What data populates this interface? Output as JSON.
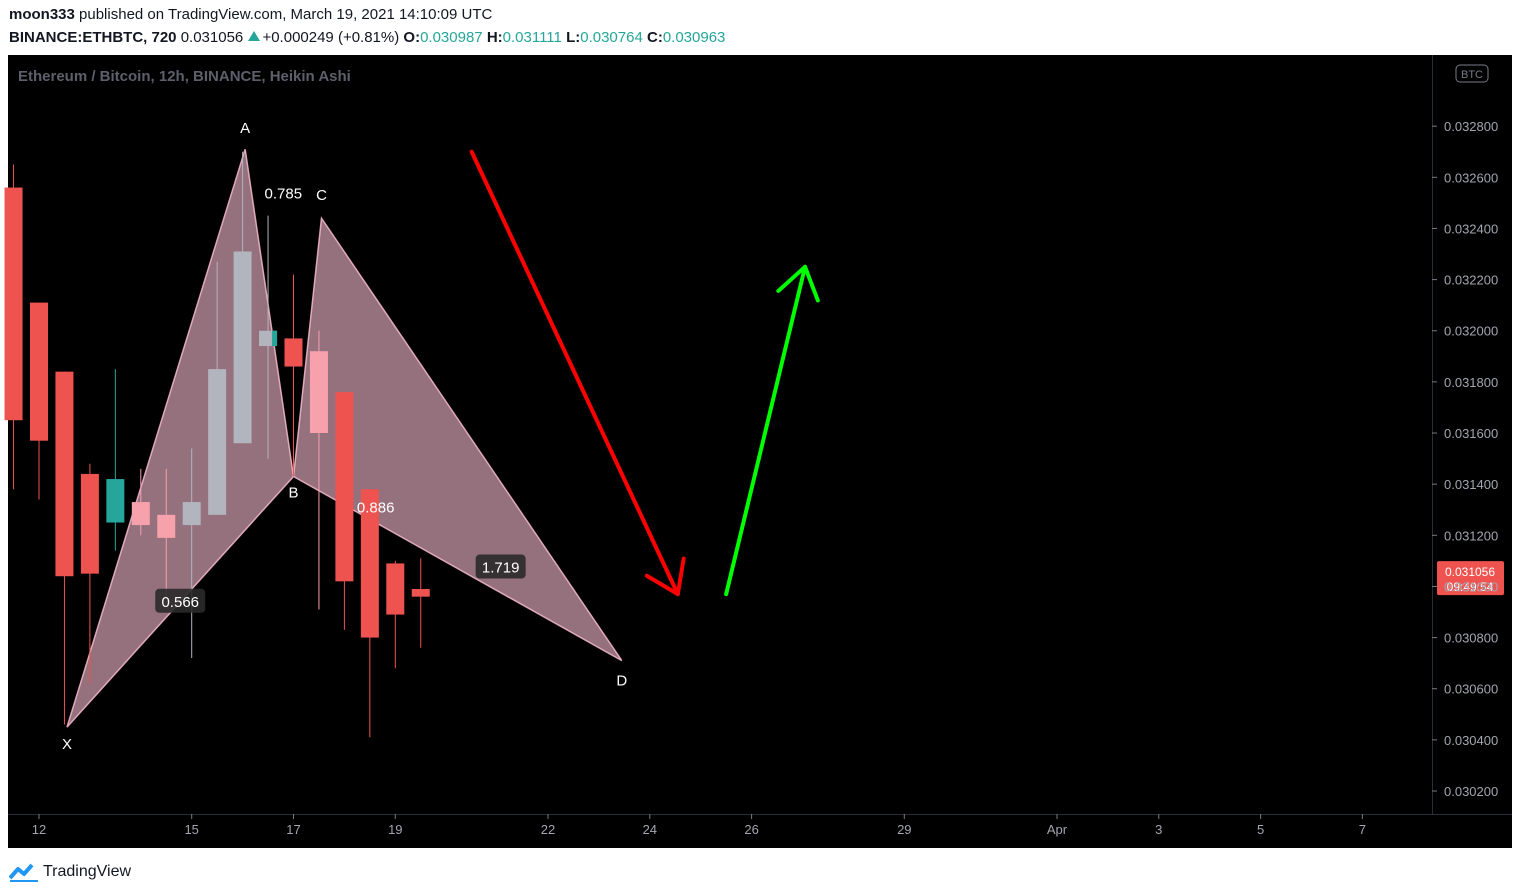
{
  "header": {
    "author": "moon333",
    "published_text": "published on TradingView.com, March 19, 2021 14:10:09 UTC",
    "symbol": "BINANCE:ETHBTC, 720",
    "last": "0.031056",
    "change": "+0.000249 (+0.81%)",
    "o_label": "O:",
    "o": "0.030987",
    "h_label": "H:",
    "h": "0.031111",
    "l_label": "L:",
    "l": "0.030764",
    "c_label": "C:",
    "c": "0.030963"
  },
  "footer": {
    "brand": "TradingView"
  },
  "chart_data": {
    "type": "candlestick",
    "title": "Ethereum / Bitcoin, 12h, BINANCE, Heikin Ashi",
    "currency_badge": "BTC",
    "style": "Heikin Ashi",
    "grid": false,
    "background": "#000000",
    "colors": {
      "up": "#b2b5be",
      "down": "#ef5350",
      "teal": "#26a69a",
      "pattern_fill": "#f8bbd0",
      "red_arrow": "#ff0000",
      "green_arrow": "#00ff00",
      "price_tag": "#ef5350"
    },
    "y_axis": {
      "range": [
        0.0301,
        0.033
      ],
      "ticks": [
        "0.032800",
        "0.032600",
        "0.032400",
        "0.032200",
        "0.032000",
        "0.031800",
        "0.031600",
        "0.031400",
        "0.031200",
        "0.031000",
        "0.030800",
        "0.030600",
        "0.030400",
        "0.030200"
      ]
    },
    "x_axis": {
      "ticks": [
        {
          "label": "12",
          "t": 12
        },
        {
          "label": "15",
          "t": 15
        },
        {
          "label": "17",
          "t": 17
        },
        {
          "label": "19",
          "t": 19
        },
        {
          "label": "22",
          "t": 22
        },
        {
          "label": "24",
          "t": 24
        },
        {
          "label": "26",
          "t": 26
        },
        {
          "label": "29",
          "t": 29
        },
        {
          "label": "Apr",
          "t": 32
        },
        {
          "label": "3",
          "t": 34
        },
        {
          "label": "5",
          "t": 36
        },
        {
          "label": "7",
          "t": 38
        }
      ],
      "range": [
        11.4,
        39.4
      ]
    },
    "last_price_tag": {
      "price": 0.031056,
      "label": "0.031056",
      "countdown": "09:49:54"
    },
    "candles": [
      {
        "t": 11.5,
        "o": 0.03256,
        "h": 0.03265,
        "l": 0.03138,
        "c": 0.03165,
        "color": "down"
      },
      {
        "t": 12.0,
        "o": 0.03211,
        "h": 0.03211,
        "l": 0.03134,
        "c": 0.03157,
        "color": "down"
      },
      {
        "t": 12.5,
        "o": 0.03184,
        "h": 0.03184,
        "l": 0.03046,
        "c": 0.03104,
        "color": "down"
      },
      {
        "t": 13.0,
        "o": 0.03144,
        "h": 0.03148,
        "l": 0.03062,
        "c": 0.03105,
        "color": "down"
      },
      {
        "t": 13.5,
        "o": 0.03125,
        "h": 0.03185,
        "l": 0.03114,
        "c": 0.03142,
        "color": "teal"
      },
      {
        "t": 14.0,
        "o": 0.03133,
        "h": 0.03146,
        "l": 0.0312,
        "c": 0.03124,
        "color": "pink"
      },
      {
        "t": 14.5,
        "o": 0.03128,
        "h": 0.03146,
        "l": 0.03092,
        "c": 0.03119,
        "color": "pink"
      },
      {
        "t": 15.0,
        "o": 0.03124,
        "h": 0.03154,
        "l": 0.03072,
        "c": 0.03133,
        "color": "up"
      },
      {
        "t": 15.5,
        "o": 0.03128,
        "h": 0.03227,
        "l": 0.03128,
        "c": 0.03185,
        "color": "up"
      },
      {
        "t": 16.0,
        "o": 0.03156,
        "h": 0.0327,
        "l": 0.03156,
        "c": 0.03231,
        "color": "up"
      },
      {
        "t": 16.5,
        "o": 0.03194,
        "h": 0.03245,
        "l": 0.0315,
        "c": 0.032,
        "color": "teal-grey"
      },
      {
        "t": 17.0,
        "o": 0.03197,
        "h": 0.03222,
        "l": 0.03143,
        "c": 0.03186,
        "color": "down"
      },
      {
        "t": 17.5,
        "o": 0.03192,
        "h": 0.032,
        "l": 0.03091,
        "c": 0.0316,
        "color": "pink"
      },
      {
        "t": 18.0,
        "o": 0.03176,
        "h": 0.03176,
        "l": 0.03083,
        "c": 0.03102,
        "color": "down"
      },
      {
        "t": 18.5,
        "o": 0.03138,
        "h": 0.03138,
        "l": 0.03041,
        "c": 0.0308,
        "color": "down"
      },
      {
        "t": 19.0,
        "o": 0.03109,
        "h": 0.0311,
        "l": 0.03068,
        "c": 0.03089,
        "color": "down"
      },
      {
        "t": 19.5,
        "o": 0.03099,
        "h": 0.03111,
        "l": 0.03076,
        "c": 0.03096,
        "color": "down"
      }
    ],
    "pattern": {
      "points": [
        {
          "label": "X",
          "t": 12.55,
          "price": 0.03045
        },
        {
          "label": "A",
          "t": 16.05,
          "price": 0.03271
        },
        {
          "label": "B",
          "t": 17.0,
          "price": 0.03143
        },
        {
          "label": "C",
          "t": 17.55,
          "price": 0.03244
        },
        {
          "label": "D",
          "t": 23.45,
          "price": 0.03071
        }
      ],
      "ratios": [
        {
          "label": "0.785"
        },
        {
          "label": "0.566"
        },
        {
          "label": "1.719"
        },
        {
          "label": "0.886"
        }
      ]
    },
    "arrows": [
      {
        "color": "red",
        "from": {
          "t": 20.5,
          "price": 0.0327
        },
        "to": {
          "t": 24.55,
          "price": 0.03097
        }
      },
      {
        "color": "green",
        "from": {
          "t": 25.5,
          "price": 0.03097
        },
        "to": {
          "t": 27.05,
          "price": 0.03225
        }
      }
    ]
  }
}
